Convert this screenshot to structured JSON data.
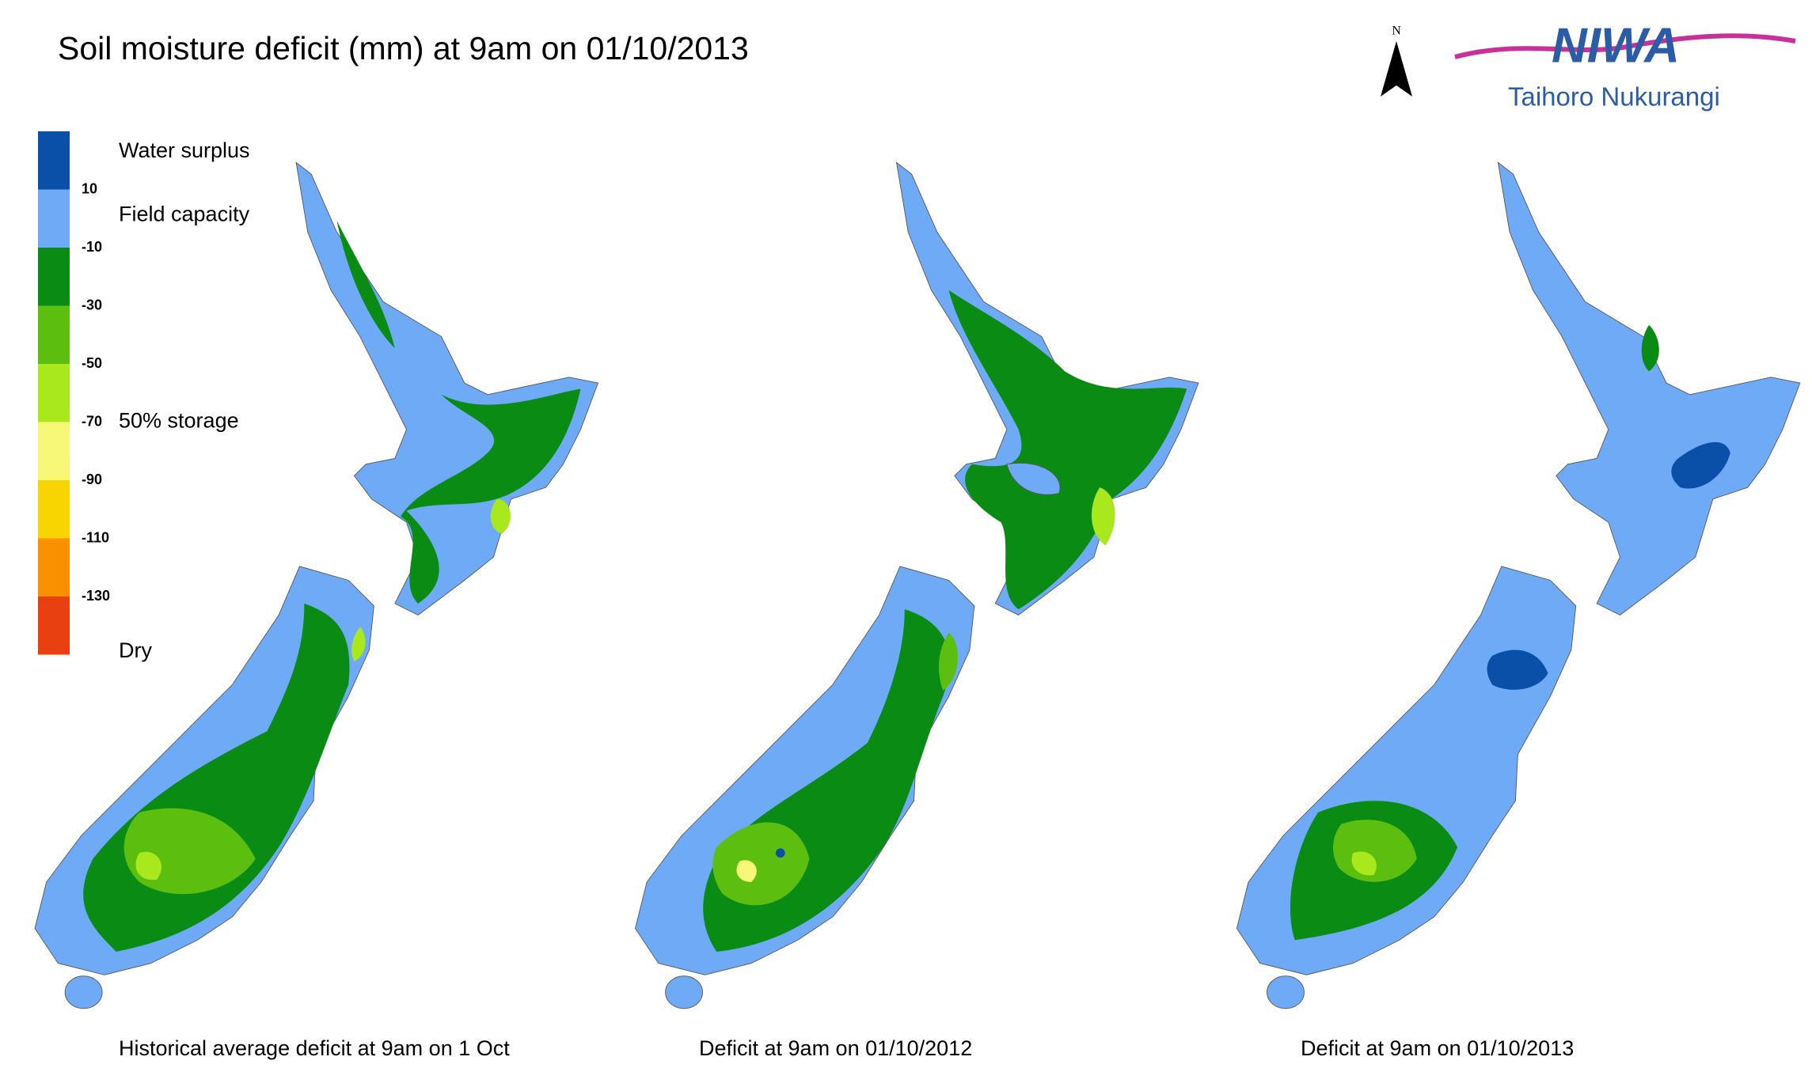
{
  "title": "Soil moisture deficit (mm) at  9am on 01/10/2013",
  "legend": {
    "colors": [
      "#0a4fa8",
      "#6eaaf5",
      "#0a8c14",
      "#5cbf10",
      "#a8e81c",
      "#f8f878",
      "#f8d400",
      "#f89000",
      "#e84010"
    ],
    "ticks": [
      10,
      -10,
      -30,
      -50,
      -70,
      -90,
      -110,
      -130
    ],
    "labels": [
      "Water surplus",
      "Field capacity",
      "50% storage",
      "Dry"
    ]
  },
  "maps": [
    {
      "caption": "Historical average deficit at 9am on 1 Oct"
    },
    {
      "caption": "Deficit at  9am on 01/10/2012"
    },
    {
      "caption": "Deficit at  9am on 01/10/2013"
    }
  ],
  "logo": {
    "name": "NIWA",
    "subtitle": "Taihoro Nukurangi",
    "north": "N"
  }
}
